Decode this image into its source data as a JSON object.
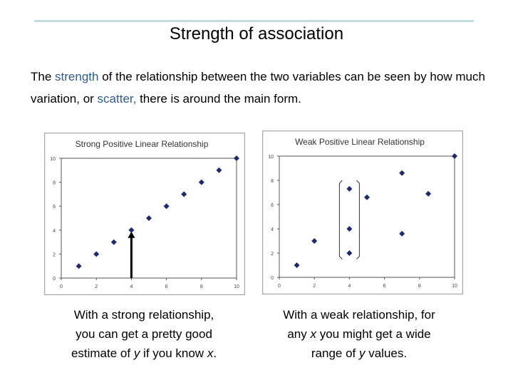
{
  "slide": {
    "title": "Strength of association",
    "intro": {
      "part1": "The ",
      "strength": "strength",
      "part2": " of the relationship between the two variables can be seen by how much variation, or ",
      "scatter": "scatter,",
      "part3": " there is around the main form."
    },
    "captions": {
      "left": {
        "line1": "With a strong relationship,",
        "line2": "you can get a pretty good",
        "line3_a": "estimate of ",
        "line3_y": "y",
        "line3_b": " if you know ",
        "line3_x": "x",
        "line3_c": "."
      },
      "right": {
        "line1": "With a weak relationship, for",
        "line2_a": "any ",
        "line2_x": "x",
        "line2_b": " you might get a wide",
        "line3_a": "range of  ",
        "line3_y": "y",
        "line3_b": " values."
      }
    },
    "colors": {
      "marker": "#1f2a6e",
      "highlight_text": "#2e5a8c",
      "rule": "#c5dde0",
      "chart_border": "#a9a9a9"
    }
  },
  "chart_data": [
    {
      "type": "scatter",
      "title": "Strong Positive Linear Relationship",
      "x": [
        1,
        2,
        3,
        4,
        5,
        6,
        7,
        8,
        9,
        10
      ],
      "y": [
        1,
        2,
        3,
        4,
        5,
        6,
        7,
        8,
        9,
        10
      ],
      "xlim": [
        0,
        10
      ],
      "ylim": [
        0,
        10
      ],
      "xticks": [
        "0",
        "2",
        "4",
        "6",
        "8",
        "10"
      ],
      "yticks": [
        "0",
        "2",
        "4",
        "6",
        "8",
        "10"
      ],
      "annotation": {
        "type": "arrow",
        "x": 4,
        "from_y": 0,
        "to_y": 4
      }
    },
    {
      "type": "scatter",
      "title": "Weak Positive Linear Relationship",
      "x": [
        1,
        2,
        4,
        4,
        4,
        5,
        7,
        7,
        8.5,
        10
      ],
      "y": [
        1,
        3,
        7.3,
        4,
        2,
        6.6,
        8.6,
        3.6,
        6.9,
        10
      ],
      "xlim": [
        0,
        10
      ],
      "ylim": [
        0,
        10
      ],
      "xticks": [
        "0",
        "2",
        "4",
        "6",
        "8",
        "10"
      ],
      "yticks": [
        "0",
        "2",
        "4",
        "6",
        "8",
        "10"
      ],
      "annotation": {
        "type": "bracket",
        "x": 4,
        "y_min": 1.5,
        "y_max": 8
      }
    }
  ]
}
